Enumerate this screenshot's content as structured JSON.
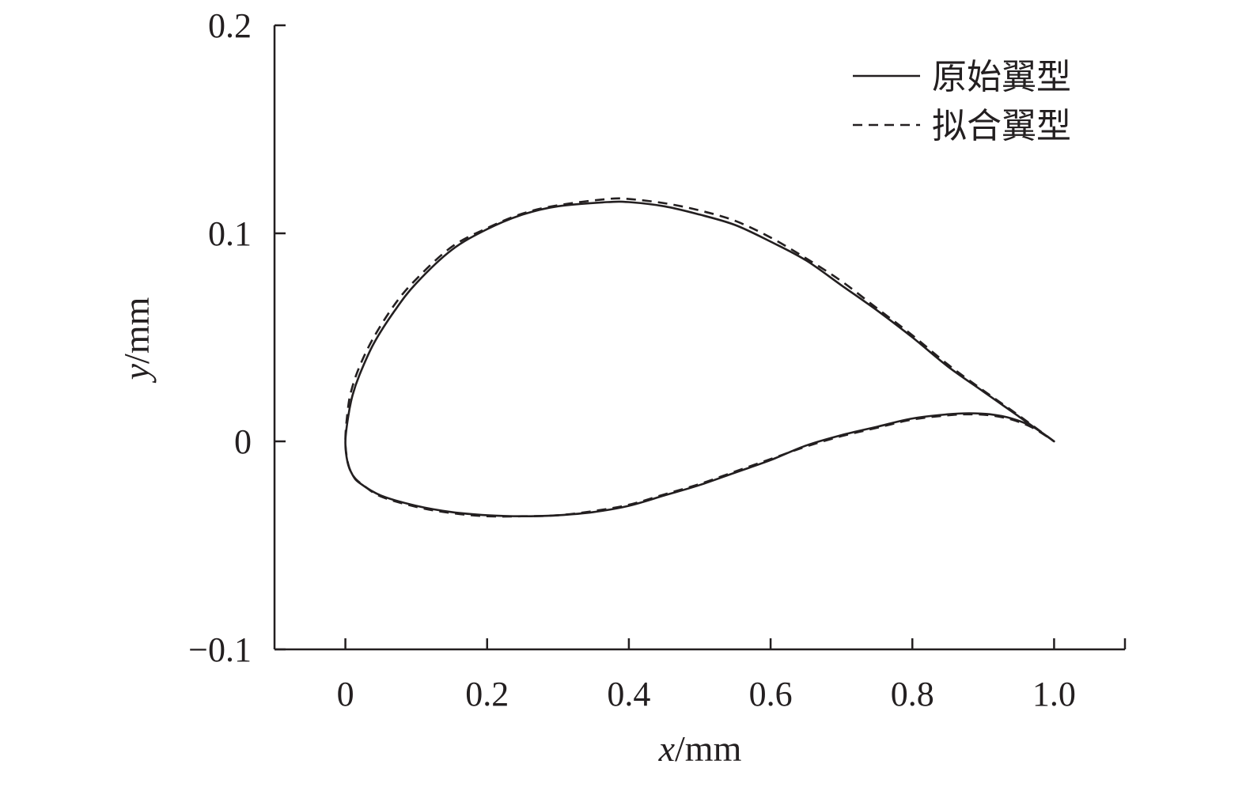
{
  "chart_data": {
    "type": "line",
    "title": "",
    "xlabel": {
      "var": "x",
      "unit": "/mm"
    },
    "ylabel": {
      "var": "y",
      "unit": "/mm"
    },
    "xlim": [
      -0.1,
      1.1
    ],
    "ylim": [
      -0.1,
      0.2
    ],
    "xticks": [
      {
        "value": 0,
        "label": "0"
      },
      {
        "value": 0.2,
        "label": "0.2"
      },
      {
        "value": 0.4,
        "label": "0.4"
      },
      {
        "value": 0.6,
        "label": "0.6"
      },
      {
        "value": 0.8,
        "label": "0.8"
      },
      {
        "value": 1.0,
        "label": "1.0"
      }
    ],
    "yticks": [
      {
        "value": -0.1,
        "label": "−0.1"
      },
      {
        "value": 0,
        "label": "0"
      },
      {
        "value": 0.1,
        "label": "0.1"
      },
      {
        "value": 0.2,
        "label": "0.2"
      }
    ],
    "grid": false,
    "legend_position": "top-right",
    "series": [
      {
        "name": "原始翼型",
        "style": "solid",
        "color": "#231f20",
        "points": [
          [
            1.0,
            0.0
          ],
          [
            0.95,
            0.012
          ],
          [
            0.9,
            0.024
          ],
          [
            0.85,
            0.036
          ],
          [
            0.8,
            0.05
          ],
          [
            0.75,
            0.063
          ],
          [
            0.7,
            0.075
          ],
          [
            0.65,
            0.087
          ],
          [
            0.6,
            0.096
          ],
          [
            0.55,
            0.104
          ],
          [
            0.5,
            0.109
          ],
          [
            0.45,
            0.113
          ],
          [
            0.4,
            0.115
          ],
          [
            0.37,
            0.115
          ],
          [
            0.3,
            0.113
          ],
          [
            0.25,
            0.109
          ],
          [
            0.2,
            0.102
          ],
          [
            0.15,
            0.092
          ],
          [
            0.1,
            0.076
          ],
          [
            0.07,
            0.063
          ],
          [
            0.04,
            0.047
          ],
          [
            0.02,
            0.032
          ],
          [
            0.01,
            0.022
          ],
          [
            0.004,
            0.012
          ],
          [
            0.0,
            0.0
          ],
          [
            0.003,
            -0.01
          ],
          [
            0.01,
            -0.016
          ],
          [
            0.02,
            -0.02
          ],
          [
            0.05,
            -0.026
          ],
          [
            0.1,
            -0.031
          ],
          [
            0.15,
            -0.034
          ],
          [
            0.2,
            -0.0355
          ],
          [
            0.25,
            -0.036
          ],
          [
            0.3,
            -0.0355
          ],
          [
            0.35,
            -0.034
          ],
          [
            0.4,
            -0.031
          ],
          [
            0.45,
            -0.026
          ],
          [
            0.5,
            -0.021
          ],
          [
            0.55,
            -0.015
          ],
          [
            0.6,
            -0.009
          ],
          [
            0.65,
            -0.002
          ],
          [
            0.7,
            0.003
          ],
          [
            0.75,
            0.007
          ],
          [
            0.8,
            0.011
          ],
          [
            0.85,
            0.013
          ],
          [
            0.88,
            0.0135
          ],
          [
            0.91,
            0.013
          ],
          [
            0.94,
            0.011
          ],
          [
            0.97,
            0.007
          ],
          [
            1.0,
            0.0
          ]
        ]
      },
      {
        "name": "拟合翼型",
        "style": "dashed",
        "color": "#231f20",
        "points": [
          [
            1.0,
            0.0
          ],
          [
            0.95,
            0.0125
          ],
          [
            0.9,
            0.0245
          ],
          [
            0.85,
            0.037
          ],
          [
            0.8,
            0.051
          ],
          [
            0.75,
            0.064
          ],
          [
            0.7,
            0.077
          ],
          [
            0.65,
            0.088
          ],
          [
            0.6,
            0.098
          ],
          [
            0.55,
            0.106
          ],
          [
            0.5,
            0.111
          ],
          [
            0.45,
            0.1145
          ],
          [
            0.4,
            0.1165
          ],
          [
            0.37,
            0.1165
          ],
          [
            0.3,
            0.1135
          ],
          [
            0.25,
            0.1095
          ],
          [
            0.2,
            0.1025
          ],
          [
            0.15,
            0.0935
          ],
          [
            0.1,
            0.078
          ],
          [
            0.07,
            0.066
          ],
          [
            0.04,
            0.05
          ],
          [
            0.02,
            0.036
          ],
          [
            0.008,
            0.024
          ],
          [
            0.003,
            0.014
          ],
          [
            0.0,
            0.0
          ],
          [
            0.004,
            -0.011
          ],
          [
            0.012,
            -0.017
          ],
          [
            0.025,
            -0.021
          ],
          [
            0.05,
            -0.0265
          ],
          [
            0.1,
            -0.0315
          ],
          [
            0.15,
            -0.0345
          ],
          [
            0.2,
            -0.036
          ],
          [
            0.25,
            -0.036
          ],
          [
            0.3,
            -0.0355
          ],
          [
            0.35,
            -0.0335
          ],
          [
            0.4,
            -0.0305
          ],
          [
            0.45,
            -0.0255
          ],
          [
            0.5,
            -0.0205
          ],
          [
            0.55,
            -0.0145
          ],
          [
            0.6,
            -0.0085
          ],
          [
            0.65,
            -0.0025
          ],
          [
            0.7,
            0.0025
          ],
          [
            0.75,
            0.0065
          ],
          [
            0.8,
            0.0105
          ],
          [
            0.85,
            0.0125
          ],
          [
            0.88,
            0.013
          ],
          [
            0.91,
            0.0125
          ],
          [
            0.94,
            0.0105
          ],
          [
            0.97,
            0.0065
          ],
          [
            1.0,
            0.0
          ]
        ]
      }
    ]
  }
}
